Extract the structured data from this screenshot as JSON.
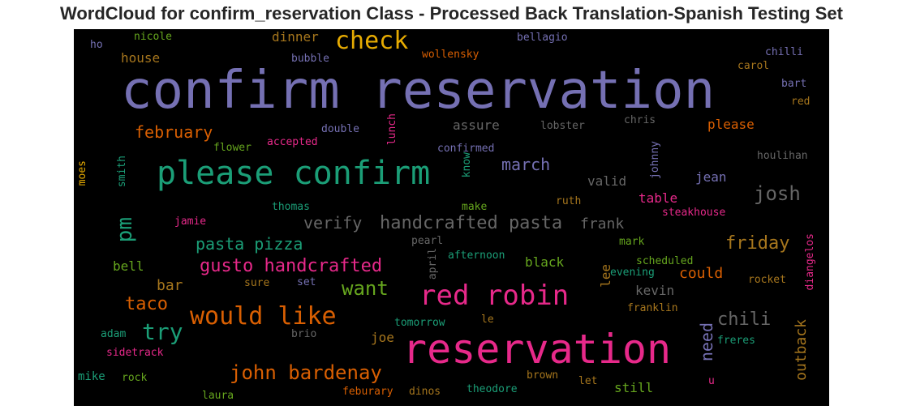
{
  "chart_data": {
    "type": "wordcloud",
    "title": "WordCloud for confirm_reservation Class - Processed Back Translation-Spanish Testing Set",
    "background": "#000000",
    "palette": [
      "#7570b3",
      "#e7298a",
      "#1b9e77",
      "#d95f02",
      "#e6ab02",
      "#66a61e",
      "#a6761d",
      "#666666"
    ],
    "words": [
      {
        "text": "confirm reservation",
        "color": "#7570b3",
        "vertical": false
      },
      {
        "text": "reservation",
        "color": "#e7298a",
        "vertical": false
      },
      {
        "text": "please confirm",
        "color": "#1b9e77",
        "vertical": false
      },
      {
        "text": "red robin",
        "color": "#e7298a",
        "vertical": false
      },
      {
        "text": "check",
        "color": "#e6ab02",
        "vertical": false
      },
      {
        "text": "would like",
        "color": "#d95f02",
        "vertical": false
      },
      {
        "text": "handcrafted pasta",
        "color": "#666666",
        "vertical": false
      },
      {
        "text": "john bardenay",
        "color": "#d95f02",
        "vertical": false
      },
      {
        "text": "gusto handcrafted",
        "color": "#e7298a",
        "vertical": false
      },
      {
        "text": "josh",
        "color": "#666666",
        "vertical": false
      },
      {
        "text": "try",
        "color": "#1b9e77",
        "vertical": false
      },
      {
        "text": "pm",
        "color": "#1b9e77",
        "vertical": true
      },
      {
        "text": "want",
        "color": "#66a61e",
        "vertical": false
      },
      {
        "text": "chili",
        "color": "#666666",
        "vertical": false
      },
      {
        "text": "taco",
        "color": "#d95f02",
        "vertical": false
      },
      {
        "text": "pasta pizza",
        "color": "#1b9e77",
        "vertical": false
      },
      {
        "text": "friday",
        "color": "#a6761d",
        "vertical": false
      },
      {
        "text": "february",
        "color": "#d95f02",
        "vertical": false
      },
      {
        "text": "verify",
        "color": "#666666",
        "vertical": false
      },
      {
        "text": "march",
        "color": "#7570b3",
        "vertical": false
      },
      {
        "text": "need",
        "color": "#7570b3",
        "vertical": true
      },
      {
        "text": "bar",
        "color": "#a6761d",
        "vertical": false
      },
      {
        "text": "frank",
        "color": "#666666",
        "vertical": false
      },
      {
        "text": "could",
        "color": "#d95f02",
        "vertical": false
      },
      {
        "text": "outback",
        "color": "#a6761d",
        "vertical": true
      },
      {
        "text": "dinner",
        "color": "#a6761d",
        "vertical": false
      },
      {
        "text": "house",
        "color": "#a6761d",
        "vertical": false
      },
      {
        "text": "assure",
        "color": "#666666",
        "vertical": false
      },
      {
        "text": "valid",
        "color": "#666666",
        "vertical": false
      },
      {
        "text": "jean",
        "color": "#7570b3",
        "vertical": false
      },
      {
        "text": "table",
        "color": "#e7298a",
        "vertical": false
      },
      {
        "text": "black",
        "color": "#66a61e",
        "vertical": false
      },
      {
        "text": "please",
        "color": "#d95f02",
        "vertical": false
      },
      {
        "text": "lee",
        "color": "#a6761d",
        "vertical": true
      },
      {
        "text": "kevin",
        "color": "#666666",
        "vertical": false
      },
      {
        "text": "joe",
        "color": "#a6761d",
        "vertical": false
      },
      {
        "text": "still",
        "color": "#66a61e",
        "vertical": false
      },
      {
        "text": "mike",
        "color": "#1b9e77",
        "vertical": false
      },
      {
        "text": "bell",
        "color": "#66a61e",
        "vertical": false
      },
      {
        "text": "steakhouse",
        "color": "#e7298a",
        "vertical": false
      },
      {
        "text": "houlihan",
        "color": "#666666",
        "vertical": false
      },
      {
        "text": "lobster",
        "color": "#666666",
        "vertical": false
      },
      {
        "text": "chris",
        "color": "#666666",
        "vertical": false
      },
      {
        "text": "confirmed",
        "color": "#7570b3",
        "vertical": false
      },
      {
        "text": "accepted",
        "color": "#e7298a",
        "vertical": false
      },
      {
        "text": "double",
        "color": "#7570b3",
        "vertical": false
      },
      {
        "text": "flower",
        "color": "#66a61e",
        "vertical": false
      },
      {
        "text": "lunch",
        "color": "#e7298a",
        "vertical": true
      },
      {
        "text": "know",
        "color": "#1b9e77",
        "vertical": true
      },
      {
        "text": "johnny",
        "color": "#7570b3",
        "vertical": true
      },
      {
        "text": "smith",
        "color": "#1b9e77",
        "vertical": true
      },
      {
        "text": "moes",
        "color": "#e6ab02",
        "vertical": true
      },
      {
        "text": "thomas",
        "color": "#1b9e77",
        "vertical": false
      },
      {
        "text": "make",
        "color": "#66a61e",
        "vertical": false
      },
      {
        "text": "ruth",
        "color": "#a6761d",
        "vertical": false
      },
      {
        "text": "jamie",
        "color": "#e7298a",
        "vertical": false
      },
      {
        "text": "pearl",
        "color": "#666666",
        "vertical": false
      },
      {
        "text": "april",
        "color": "#666666",
        "vertical": true
      },
      {
        "text": "mark",
        "color": "#66a61e",
        "vertical": false
      },
      {
        "text": "scheduled",
        "color": "#66a61e",
        "vertical": false
      },
      {
        "text": "afternoon",
        "color": "#1b9e77",
        "vertical": false
      },
      {
        "text": "evening",
        "color": "#1b9e77",
        "vertical": false
      },
      {
        "text": "diangelos",
        "color": "#e7298a",
        "vertical": true
      },
      {
        "text": "rocket",
        "color": "#a6761d",
        "vertical": false
      },
      {
        "text": "sure",
        "color": "#a6761d",
        "vertical": false
      },
      {
        "text": "set",
        "color": "#7570b3",
        "vertical": false
      },
      {
        "text": "franklin",
        "color": "#a6761d",
        "vertical": false
      },
      {
        "text": "tomorrow",
        "color": "#1b9e77",
        "vertical": false
      },
      {
        "text": "le",
        "color": "#a6761d",
        "vertical": false
      },
      {
        "text": "brio",
        "color": "#666666",
        "vertical": false
      },
      {
        "text": "adam",
        "color": "#1b9e77",
        "vertical": false
      },
      {
        "text": "freres",
        "color": "#1b9e77",
        "vertical": false
      },
      {
        "text": "sidetrack",
        "color": "#e7298a",
        "vertical": false
      },
      {
        "text": "rock",
        "color": "#66a61e",
        "vertical": false
      },
      {
        "text": "brown",
        "color": "#a6761d",
        "vertical": false
      },
      {
        "text": "u",
        "color": "#e7298a",
        "vertical": false
      },
      {
        "text": "let",
        "color": "#a6761d",
        "vertical": false
      },
      {
        "text": "theodore",
        "color": "#1b9e77",
        "vertical": false
      },
      {
        "text": "dinos",
        "color": "#a6761d",
        "vertical": false
      },
      {
        "text": "feburary",
        "color": "#d95f02",
        "vertical": false
      },
      {
        "text": "laura",
        "color": "#66a61e",
        "vertical": false
      },
      {
        "text": "ho",
        "color": "#7570b3",
        "vertical": false
      },
      {
        "text": "nicole",
        "color": "#66a61e",
        "vertical": false
      },
      {
        "text": "bubble",
        "color": "#7570b3",
        "vertical": false
      },
      {
        "text": "wollensky",
        "color": "#d95f02",
        "vertical": false
      },
      {
        "text": "bellagio",
        "color": "#7570b3",
        "vertical": false
      },
      {
        "text": "chilli",
        "color": "#7570b3",
        "vertical": false
      },
      {
        "text": "carol",
        "color": "#a6761d",
        "vertical": false
      },
      {
        "text": "bart",
        "color": "#7570b3",
        "vertical": false
      },
      {
        "text": "red",
        "color": "#a6761d",
        "vertical": false
      }
    ]
  }
}
